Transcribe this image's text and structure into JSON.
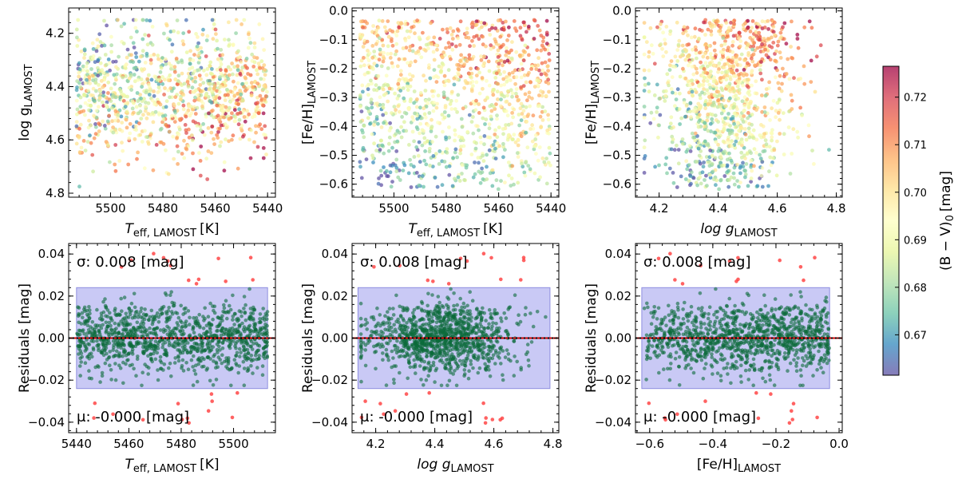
{
  "chart_data": [
    {
      "id": "p1",
      "type": "scatter",
      "panel": "top-left",
      "xlabel_main": "T",
      "xlabel_sub": "eff, LAMOST",
      "xlabel_unit": "[K]",
      "ylabel_main": "log g",
      "ylabel_sub": "LAMOST",
      "xlim": [
        5516,
        5437
      ],
      "ylim": [
        4.815,
        4.105
      ],
      "xticks": [
        5500,
        5480,
        5460,
        5440
      ],
      "yticks": [
        4.2,
        4.4,
        4.6,
        4.8
      ],
      "xtick_labels": [
        "5500",
        "5480",
        "5460",
        "5440"
      ],
      "ytick_labels": [
        "4.2",
        "4.4",
        "4.6",
        "4.8"
      ],
      "n_points": 1100,
      "x_range": [
        5440,
        5513
      ],
      "y_range": [
        4.15,
        4.78
      ],
      "color_by": "(B-V)_0",
      "trend": "redder (higher B-V) at larger log g and lower Teff"
    },
    {
      "id": "p2",
      "type": "scatter",
      "panel": "top-middle",
      "xlabel_main": "T",
      "xlabel_sub": "eff, LAMOST",
      "xlabel_unit": "[K]",
      "ylabel_main": "[Fe/H]",
      "ylabel_sub": "LAMOST",
      "xlim": [
        5516,
        5437
      ],
      "ylim": [
        -0.645,
        0.01
      ],
      "xticks": [
        5500,
        5480,
        5460,
        5440
      ],
      "yticks": [
        0.0,
        -0.1,
        -0.2,
        -0.3,
        -0.4,
        -0.5,
        -0.6
      ],
      "xtick_labels": [
        "5500",
        "5480",
        "5460",
        "5440"
      ],
      "ytick_labels": [
        "0.0",
        "−0.1",
        "−0.2",
        "−0.3",
        "−0.4",
        "−0.5",
        "−0.6"
      ],
      "n_points": 1100,
      "x_range": [
        5440,
        5513
      ],
      "y_range": [
        -0.62,
        -0.03
      ],
      "color_by": "(B-V)_0",
      "trend": "redder at higher [Fe/H]"
    },
    {
      "id": "p3",
      "type": "scatter",
      "panel": "top-right",
      "xlabel_main": "log g",
      "xlabel_sub": "LAMOST",
      "xlabel_unit": "",
      "ylabel_main": "[Fe/H]",
      "ylabel_sub": "LAMOST",
      "xlim": [
        4.12,
        4.82
      ],
      "ylim": [
        -0.645,
        0.01
      ],
      "xticks": [
        4.2,
        4.4,
        4.6,
        4.8
      ],
      "yticks": [
        0.0,
        -0.1,
        -0.2,
        -0.3,
        -0.4,
        -0.5,
        -0.6
      ],
      "xtick_labels": [
        "4.2",
        "4.4",
        "4.6",
        "4.8"
      ],
      "ytick_labels": [
        "0.0",
        "−0.1",
        "−0.2",
        "−0.3",
        "−0.4",
        "−0.5",
        "−0.6"
      ],
      "n_points": 1100,
      "x_range": [
        4.15,
        4.78
      ],
      "y_range": [
        -0.62,
        -0.03
      ],
      "color_by": "(B-V)_0",
      "trend": "redder at higher [Fe/H] and higher log g"
    },
    {
      "id": "p4",
      "type": "scatter",
      "panel": "bottom-left",
      "xlabel_main": "T",
      "xlabel_sub": "eff, LAMOST",
      "xlabel_unit": "[K]",
      "ylabel_main": "Residuals [mag]",
      "ylabel_sub": "",
      "xlim": [
        5437,
        5516
      ],
      "ylim": [
        -0.045,
        0.045
      ],
      "xticks": [
        5440,
        5460,
        5480,
        5500
      ],
      "yticks": [
        0.04,
        0.02,
        0.0,
        -0.02,
        -0.04
      ],
      "xtick_labels": [
        "5440",
        "5460",
        "5480",
        "5500"
      ],
      "ytick_labels": [
        "0.04",
        "0.02",
        "0.00",
        "−0.02",
        "−0.04"
      ],
      "band_x": [
        5440,
        5513
      ],
      "band_y": [
        -0.024,
        0.024
      ],
      "x_range": [
        5440,
        5513
      ],
      "sigma_label": "σ: 0.008 [mag]",
      "mu_label": "μ: -0.000 [mag]",
      "sigma": 0.008,
      "mu": 0.0,
      "n_points": 1100,
      "n_outliers": 26
    },
    {
      "id": "p5",
      "type": "scatter",
      "panel": "bottom-middle",
      "xlabel_main": "log g",
      "xlabel_sub": "LAMOST",
      "xlabel_unit": "",
      "ylabel_main": "Residuals [mag]",
      "ylabel_sub": "",
      "xlim": [
        4.12,
        4.82
      ],
      "ylim": [
        -0.045,
        0.045
      ],
      "xticks": [
        4.2,
        4.4,
        4.6,
        4.8
      ],
      "yticks": [
        0.04,
        0.02,
        0.0,
        -0.02,
        -0.04
      ],
      "xtick_labels": [
        "4.2",
        "4.4",
        "4.6",
        "4.8"
      ],
      "ytick_labels": [
        "0.04",
        "0.02",
        "0.00",
        "−0.02",
        "−0.04"
      ],
      "band_x": [
        4.14,
        4.79
      ],
      "band_y": [
        -0.024,
        0.024
      ],
      "x_range": [
        4.15,
        4.78
      ],
      "sigma_label": "σ: 0.008 [mag]",
      "mu_label": "μ: -0.000 [mag]",
      "sigma": 0.008,
      "mu": 0.0,
      "n_points": 1100,
      "n_outliers": 26
    },
    {
      "id": "p6",
      "type": "scatter",
      "panel": "bottom-right",
      "xlabel_main": "[Fe/H]",
      "xlabel_sub": "LAMOST",
      "xlabel_unit": "",
      "ylabel_main": "Residuals [mag]",
      "ylabel_sub": "",
      "xlim": [
        -0.645,
        0.01
      ],
      "ylim": [
        -0.045,
        0.045
      ],
      "xticks": [
        -0.6,
        -0.4,
        -0.2,
        0.0
      ],
      "yticks": [
        0.04,
        0.02,
        0.0,
        -0.02,
        -0.04
      ],
      "xtick_labels": [
        "−0.6",
        "−0.4",
        "−0.2",
        "0.0"
      ],
      "ytick_labels": [
        "0.04",
        "0.02",
        "0.00",
        "−0.02",
        "−0.04"
      ],
      "band_x": [
        -0.625,
        -0.03
      ],
      "band_y": [
        -0.024,
        0.024
      ],
      "x_range": [
        -0.62,
        -0.03
      ],
      "sigma_label": "σ: 0.008 [mag]",
      "mu_label": "μ: -0.000 [mag]",
      "sigma": 0.008,
      "mu": 0.0,
      "n_points": 1100,
      "n_outliers": 26
    }
  ],
  "colorbar": {
    "label": "(B − V)",
    "label_sub": "0",
    "label_unit": "[mag]",
    "range": [
      0.6615,
      0.7265
    ],
    "ticks": [
      0.67,
      0.68,
      0.69,
      0.7,
      0.71,
      0.72
    ],
    "tick_labels": [
      "0.67",
      "0.68",
      "0.69",
      "0.70",
      "0.71",
      "0.72"
    ],
    "colormap": "Spectral_r",
    "stops": [
      "#5e4fa2",
      "#3288bd",
      "#66c2a5",
      "#abdda4",
      "#e6f598",
      "#ffffbf",
      "#fee08b",
      "#fdae61",
      "#f46d43",
      "#d53e4f",
      "#9e0142"
    ]
  },
  "colors": {
    "residual_points": "#0b6b3a",
    "outlier_points": "#ff3b3b",
    "band_fill": "#c9c9f5",
    "band_edge": "#8f8fe0",
    "zero_line_red": "#d40000",
    "zero_line_black": "#000000"
  }
}
